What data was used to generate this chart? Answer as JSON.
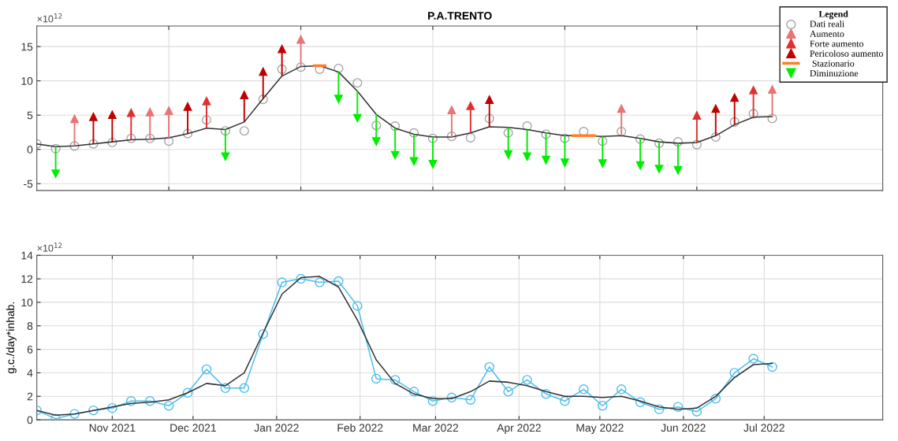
{
  "chart_data": [
    {
      "type": "line",
      "title": "P.A.TRENTO",
      "annotations": [
        "×10$^{12}$"
      ],
      "legend_title": "Legend",
      "legend": "top right",
      "grid": true,
      "tick_labels": "y",
      "xlim": [
        "2021-10-04",
        "2022-08-14"
      ],
      "ylim": [
        -6,
        18
      ],
      "yticks": [
        -5,
        0,
        5,
        10,
        15
      ],
      "xticks": [
        {
          "value": "2021-11-22",
          "label": null
        },
        {
          "value": "2022-01-10",
          "label": null
        },
        {
          "value": "2022-02-28",
          "label": null
        },
        {
          "value": "2022-04-18",
          "label": null
        },
        {
          "value": "2022-06-06",
          "label": null
        }
      ],
      "x": [
        "2021-10-04",
        "2021-10-11",
        "2021-10-18",
        "2021-10-25",
        "2021-11-01",
        "2021-11-08",
        "2021-11-15",
        "2021-11-22",
        "2021-11-29",
        "2021-12-06",
        "2021-12-13",
        "2021-12-20",
        "2021-12-27",
        "2022-01-03",
        "2022-01-10",
        "2022-01-17",
        "2022-01-24",
        "2022-01-31",
        "2022-02-07",
        "2022-02-14",
        "2022-02-21",
        "2022-02-28",
        "2022-03-07",
        "2022-03-14",
        "2022-03-21",
        "2022-03-28",
        "2022-04-04",
        "2022-04-11",
        "2022-04-18",
        "2022-04-25",
        "2022-05-02",
        "2022-05-09",
        "2022-05-16",
        "2022-05-23",
        "2022-05-30",
        "2022-06-06",
        "2022-06-13",
        "2022-06-20",
        "2022-06-27",
        "2022-07-04"
      ],
      "series": [
        {
          "color": "#333333",
          "marker": "none",
          "values": [
            0.8,
            0.4,
            0.5,
            0.8,
            1.1,
            1.4,
            1.5,
            1.7,
            2.3,
            3.1,
            2.9,
            4.0,
            7.4,
            10.7,
            12.1,
            12.2,
            11.3,
            8.5,
            5.1,
            3.1,
            2.2,
            1.8,
            1.8,
            2.4,
            3.3,
            3.2,
            2.9,
            2.4,
            2.0,
            2.0,
            1.9,
            2.0,
            1.6,
            1.1,
            0.9,
            1.0,
            2.0,
            3.6,
            4.7,
            4.8
          ]
        },
        {
          "type": "scatter",
          "name": "Dati reali",
          "color": "#a6a6a6",
          "marker": "circle",
          "values": [
            0.8,
            0.1,
            0.5,
            0.8,
            1.0,
            1.6,
            1.6,
            1.2,
            2.3,
            4.3,
            2.7,
            2.7,
            7.3,
            11.7,
            12.0,
            11.7,
            11.8,
            9.7,
            3.5,
            3.4,
            2.4,
            1.6,
            1.9,
            1.7,
            4.5,
            2.4,
            3.4,
            2.2,
            1.6,
            2.6,
            1.2,
            2.6,
            1.5,
            0.9,
            1.1,
            0.7,
            1.8,
            4.0,
            5.2,
            4.5
          ]
        },
        {
          "type": "scatter",
          "name": "Aumento",
          "color": "#ea7474",
          "marker": "triangle",
          "x": [
            "2021-10-18",
            "2021-11-15",
            "2021-11-22",
            "2022-01-10",
            "2022-03-07",
            "2022-05-09",
            "2022-07-04"
          ],
          "values": [
            4.5,
            5.5,
            5.7,
            16.1,
            5.8,
            6.0,
            8.8
          ],
          "errors": [
            [
              0.5,
              4.5
            ],
            [
              1.5,
              5.5
            ],
            [
              1.7,
              5.7
            ],
            [
              12.1,
              16.1
            ],
            [
              1.8,
              5.8
            ],
            [
              2.0,
              6.0
            ],
            [
              4.8,
              8.8
            ]
          ]
        },
        {
          "type": "scatter",
          "name": "Forte aumento",
          "color": "#e03030",
          "marker": "triangle",
          "x": [
            "2021-11-08",
            "2021-12-06",
            "2022-03-14",
            "2022-06-06",
            "2022-06-27"
          ],
          "values": [
            5.4,
            7.1,
            6.4,
            5.0,
            8.7
          ],
          "errors": [
            [
              1.4,
              5.4
            ],
            [
              3.1,
              7.1
            ],
            [
              2.4,
              6.4
            ],
            [
              1.0,
              5.0
            ],
            [
              4.7,
              8.7
            ]
          ]
        },
        {
          "type": "scatter",
          "name": "Pericoloso aumento",
          "color": "#c00000",
          "marker": "triangle",
          "x": [
            "2021-10-25",
            "2021-11-01",
            "2021-11-29",
            "2021-12-20",
            "2021-12-27",
            "2022-01-03",
            "2022-03-21",
            "2022-06-13",
            "2022-06-20"
          ],
          "values": [
            4.8,
            5.1,
            6.3,
            8.0,
            11.4,
            14.7,
            7.3,
            6.0,
            7.6
          ],
          "errors": [
            [
              0.8,
              4.8
            ],
            [
              1.1,
              5.1
            ],
            [
              2.3,
              6.3
            ],
            [
              4.0,
              8.0
            ],
            [
              7.4,
              11.4
            ],
            [
              10.7,
              14.7
            ],
            [
              3.3,
              7.3
            ],
            [
              2.0,
              6.0
            ],
            [
              3.6,
              7.6
            ]
          ]
        },
        {
          "type": "line",
          "name": " Stazionario",
          "color": "#ff7f27",
          "marker": "none",
          "x": [
            "2022-01-15",
            "2022-01-19",
            "2022-03-01",
            "2022-04-21",
            "2022-04-29"
          ],
          "values": [
            12.2,
            12.2,
            null,
            2.0,
            2.0
          ]
        },
        {
          "type": "scatter",
          "name": "Diminuzione",
          "color": "#00ee00",
          "marker": "triangle",
          "x": [
            "2021-10-11",
            "2021-12-13",
            "2022-01-24",
            "2022-01-31",
            "2022-02-07",
            "2022-02-14",
            "2022-02-21",
            "2022-02-28",
            "2022-03-28",
            "2022-04-04",
            "2022-04-11",
            "2022-04-18",
            "2022-05-02",
            "2022-05-16",
            "2022-05-23",
            "2022-05-30"
          ],
          "values": [
            -3.6,
            -1.1,
            7.3,
            4.5,
            1.1,
            -0.9,
            -1.8,
            -2.2,
            -0.8,
            -1.1,
            -1.6,
            -2.0,
            -2.1,
            -2.4,
            -2.9,
            -3.1
          ],
          "errors": [
            [
              -3.6,
              0.4
            ],
            [
              -1.1,
              2.9
            ],
            [
              7.3,
              11.3
            ],
            [
              4.5,
              8.5
            ],
            [
              1.1,
              5.1
            ],
            [
              -0.9,
              3.1
            ],
            [
              -1.8,
              2.2
            ],
            [
              -2.2,
              1.8
            ],
            [
              -0.8,
              3.2
            ],
            [
              -1.1,
              2.9
            ],
            [
              -1.6,
              2.4
            ],
            [
              -2.0,
              2.0
            ],
            [
              -2.1,
              1.9
            ],
            [
              -2.4,
              1.6
            ],
            [
              -2.9,
              1.1
            ],
            [
              -3.1,
              0.9
            ]
          ]
        }
      ]
    },
    {
      "type": "line",
      "ylabel": "g.c./day*inhab.",
      "annotations": [
        "×10$^{12}$"
      ],
      "grid": true,
      "legend": false,
      "xlim": [
        "2021-10-04",
        "2022-08-14"
      ],
      "ylim": [
        0,
        14
      ],
      "yticks": [
        0,
        2,
        4,
        6,
        8,
        10,
        12,
        14
      ],
      "xticks": [
        {
          "value": "2021-11-01",
          "label": "Nov 2021"
        },
        {
          "value": "2021-12-01",
          "label": "Dec 2021"
        },
        {
          "value": "2022-01-01",
          "label": "Jan 2022"
        },
        {
          "value": "2022-02-01",
          "label": "Feb 2022"
        },
        {
          "value": "2022-03-01",
          "label": "Mar 2022"
        },
        {
          "value": "2022-04-01",
          "label": "Apr 2022"
        },
        {
          "value": "2022-05-01",
          "label": "May 2022"
        },
        {
          "value": "2022-06-01",
          "label": "Jun 2022"
        },
        {
          "value": "2022-07-01",
          "label": "Jul 2022"
        }
      ],
      "x": [
        "2021-10-04",
        "2021-10-11",
        "2021-10-18",
        "2021-10-25",
        "2021-11-01",
        "2021-11-08",
        "2021-11-15",
        "2021-11-22",
        "2021-11-29",
        "2021-12-06",
        "2021-12-13",
        "2021-12-20",
        "2021-12-27",
        "2022-01-03",
        "2022-01-10",
        "2022-01-17",
        "2022-01-24",
        "2022-01-31",
        "2022-02-07",
        "2022-02-14",
        "2022-02-21",
        "2022-02-28",
        "2022-03-07",
        "2022-03-14",
        "2022-03-21",
        "2022-03-28",
        "2022-04-04",
        "2022-04-11",
        "2022-04-18",
        "2022-04-25",
        "2022-05-02",
        "2022-05-09",
        "2022-05-16",
        "2022-05-23",
        "2022-05-30",
        "2022-06-06",
        "2022-06-13",
        "2022-06-20",
        "2022-06-27",
        "2022-07-04"
      ],
      "series": [
        {
          "color": "#4dbeee",
          "marker": "circle",
          "values": [
            0.8,
            0.1,
            0.5,
            0.8,
            1.0,
            1.6,
            1.6,
            1.2,
            2.3,
            4.3,
            2.7,
            2.7,
            7.3,
            11.7,
            12.0,
            11.7,
            11.8,
            9.7,
            3.5,
            3.4,
            2.4,
            1.6,
            1.9,
            1.7,
            4.5,
            2.4,
            3.4,
            2.2,
            1.6,
            2.6,
            1.2,
            2.6,
            1.5,
            0.9,
            1.1,
            0.7,
            1.8,
            4.0,
            5.2,
            4.5
          ]
        },
        {
          "color": "#333333",
          "marker": "none",
          "values": [
            0.8,
            0.4,
            0.5,
            0.8,
            1.1,
            1.4,
            1.5,
            1.7,
            2.3,
            3.1,
            2.9,
            4.0,
            7.4,
            10.7,
            12.1,
            12.2,
            11.3,
            8.5,
            5.1,
            3.1,
            2.2,
            1.8,
            1.8,
            2.4,
            3.3,
            3.2,
            2.9,
            2.4,
            2.0,
            2.0,
            1.9,
            2.0,
            1.6,
            1.1,
            0.9,
            1.0,
            2.0,
            3.6,
            4.7,
            4.8
          ]
        }
      ]
    }
  ]
}
